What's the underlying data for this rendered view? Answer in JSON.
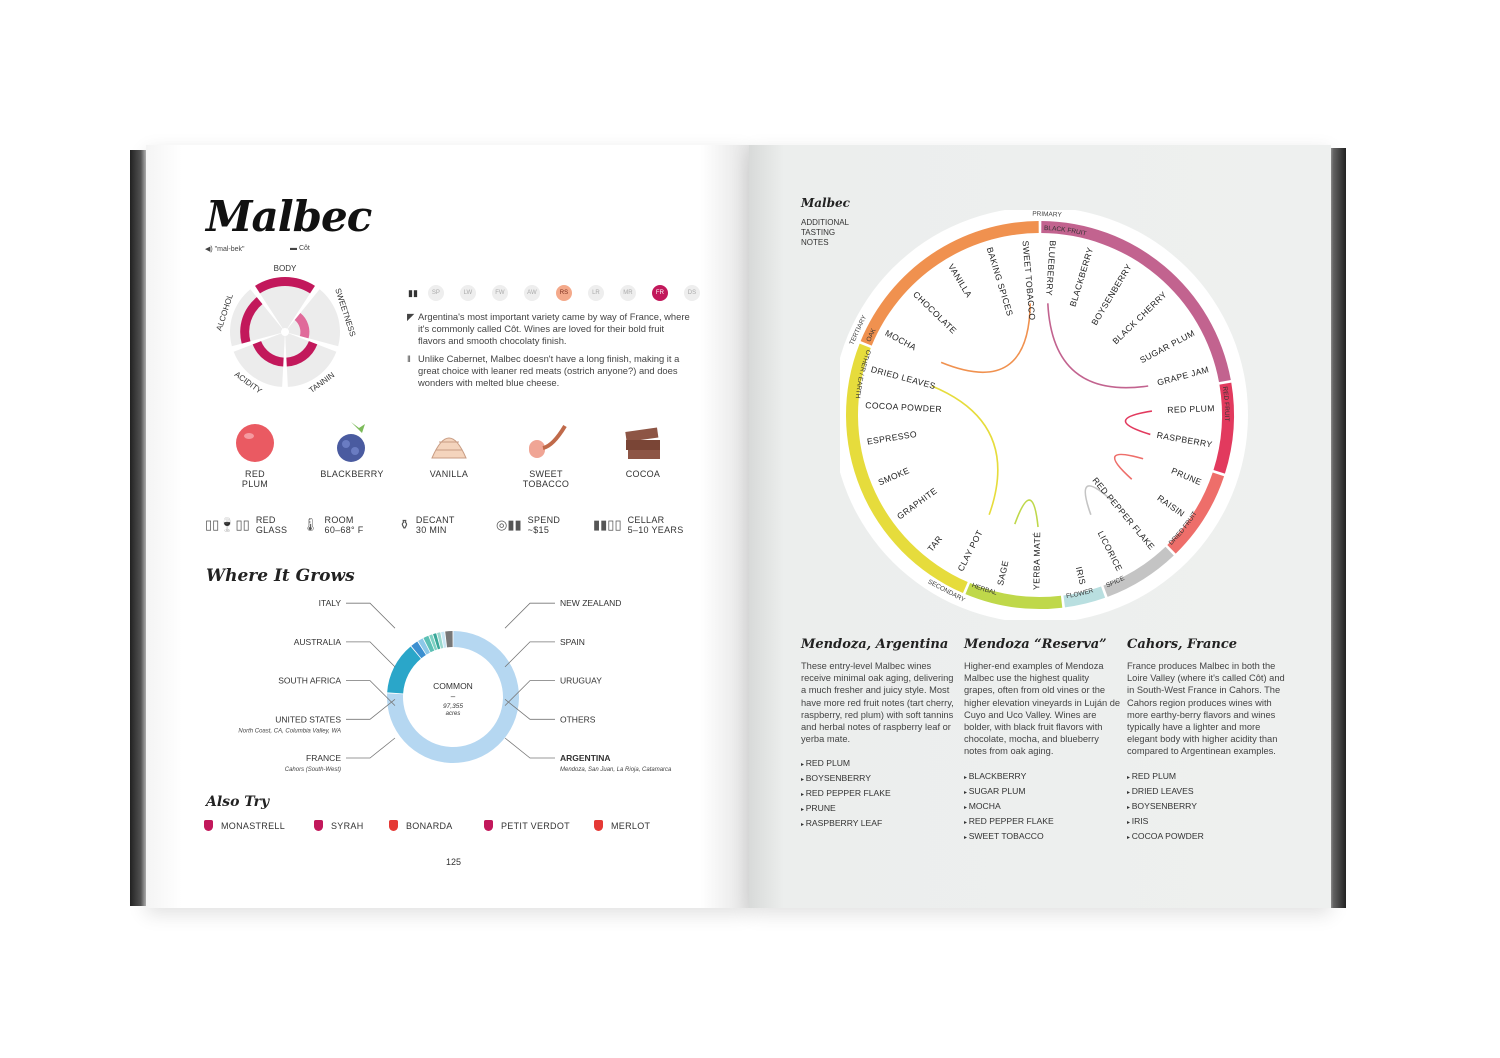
{
  "left_page": {
    "title": "Malbec",
    "pronunciation": "\"mal-bek\"",
    "synonym": "Côt",
    "profile": {
      "axes": [
        {
          "label": "BODY",
          "level": 5
        },
        {
          "label": "SWEETNESS",
          "level": 2
        },
        {
          "label": "TANNIN",
          "level": 3
        },
        {
          "label": "ACIDITY",
          "level": 3
        },
        {
          "label": "ALCOHOL",
          "level": 4
        }
      ],
      "max_level": 5
    },
    "styles": [
      {
        "code": "SP",
        "active": false
      },
      {
        "code": "LW",
        "active": false
      },
      {
        "code": "FW",
        "active": false
      },
      {
        "code": "AW",
        "active": false
      },
      {
        "code": "RS",
        "active": true,
        "color": "#f4a98a"
      },
      {
        "code": "LR",
        "active": false
      },
      {
        "code": "MR",
        "active": false
      },
      {
        "code": "FR",
        "active": true,
        "color": "#c2185b"
      },
      {
        "code": "DS",
        "active": false
      }
    ],
    "description": "Argentina's most important variety came by way of France, where it's commonly called Côt. Wines are loved for their bold fruit flavors and smooth chocolaty finish.",
    "pairing": "Unlike Cabernet, Malbec doesn't have a long finish, making it a great choice with leaner red meats (ostrich anyone?) and does wonders with melted blue cheese.",
    "flavors": [
      {
        "label": "RED\nPLUM",
        "icon": "red-plum-icon"
      },
      {
        "label": "BLACKBERRY",
        "icon": "blackberry-icon"
      },
      {
        "label": "VANILLA",
        "icon": "vanilla-icon"
      },
      {
        "label": "SWEET\nTOBACCO",
        "icon": "pipe-icon"
      },
      {
        "label": "COCOA",
        "icon": "cocoa-icon"
      }
    ],
    "serving": [
      {
        "line1": "RED",
        "line2": "GLASS",
        "icon": "wine-glass-icon"
      },
      {
        "line1": "ROOM",
        "line2": "60–68° F",
        "icon": "thermometer-icon"
      },
      {
        "line1": "DECANT",
        "line2": "30 MIN",
        "icon": "decanter-icon"
      },
      {
        "line1": "SPEND",
        "line2": "~$15",
        "icon": "coins-icon"
      },
      {
        "line1": "CELLAR",
        "line2": "5–10 YEARS",
        "icon": "bottles-icon"
      }
    ],
    "where_heading": "Where It Grows",
    "donut": {
      "center_label": "COMMON",
      "center_dash": "–",
      "center_value": "97,355",
      "center_unit": "acres",
      "segments": [
        {
          "country": "ARGENTINA",
          "share": 76,
          "color": "#b5d7f1",
          "regions": "Mendoza, San Juan, La Rioja, Catamarca"
        },
        {
          "country": "FRANCE",
          "share": 13,
          "color": "#2aa6c9",
          "regions": "Cahors (South-West)"
        },
        {
          "country": "UNITED STATES",
          "share": 2,
          "color": "#3b8fd0",
          "regions": "North Coast, CA, Columbia Valley, WA"
        },
        {
          "country": "SOUTH AFRICA",
          "share": 1.5,
          "color": "#8cc8e8",
          "regions": ""
        },
        {
          "country": "AUSTRALIA",
          "share": 1.5,
          "color": "#5cc0b5",
          "regions": ""
        },
        {
          "country": "ITALY",
          "share": 1,
          "color": "#7fd2c4",
          "regions": ""
        },
        {
          "country": "NEW ZEALAND",
          "share": 1,
          "color": "#3aa89a",
          "regions": ""
        },
        {
          "country": "SPAIN",
          "share": 1,
          "color": "#9ad8ce",
          "regions": ""
        },
        {
          "country": "URUGUAY",
          "share": 1,
          "color": "#c8e6f4",
          "regions": ""
        },
        {
          "country": "OTHERS",
          "share": 2,
          "color": "#777777",
          "regions": ""
        }
      ]
    },
    "also_try_heading": "Also Try",
    "also_try": [
      {
        "name": "MONASTRELL",
        "color": "#c2185b"
      },
      {
        "name": "SYRAH",
        "color": "#c2185b"
      },
      {
        "name": "BONARDA",
        "color": "#e53935"
      },
      {
        "name": "PETIT VERDOT",
        "color": "#c2185b"
      },
      {
        "name": "MERLOT",
        "color": "#e53935"
      }
    ],
    "page_number": "125"
  },
  "right_page": {
    "title": "Malbec",
    "subtitle": "ADDITIONAL\nTASTING\nNOTES",
    "wheel": {
      "primary_label": "PRIMARY",
      "secondary_label": "SECONDARY",
      "tertiary_label": "TERTIARY",
      "categories": [
        {
          "label": "BLACK FRUIT",
          "color": "#c2638f",
          "from": 0,
          "to": 80
        },
        {
          "label": "RED FRUIT",
          "color": "#e23a5e",
          "from": 80,
          "to": 108
        },
        {
          "label": "DRIED FRUIT",
          "color": "#ee6e6a",
          "from": 108,
          "to": 136
        },
        {
          "label": "SPICE",
          "color": "#c4c4c4",
          "from": 136,
          "to": 160
        },
        {
          "label": "FLOWER",
          "color": "#b9dfe0",
          "from": 160,
          "to": 173
        },
        {
          "label": "HERBAL",
          "color": "#bfd84a",
          "from": 173,
          "to": 203
        },
        {
          "label": "OTHER / EARTH",
          "color": "#e6dc3c",
          "from": 203,
          "to": 292
        },
        {
          "label": "OAK",
          "color": "#f0914f",
          "from": 292,
          "to": 360
        }
      ],
      "notes": [
        {
          "label": "BLUEBERRY",
          "angle": 4
        },
        {
          "label": "BLACKBERRY",
          "angle": 17
        },
        {
          "label": "BOYSENBERRY",
          "angle": 31
        },
        {
          "label": "BLACK CHERRY",
          "angle": 46
        },
        {
          "label": "SUGAR PLUM",
          "angle": 62
        },
        {
          "label": "GRAPE JAM",
          "angle": 75
        },
        {
          "label": "RED PLUM",
          "angle": 88
        },
        {
          "label": "RASPBERRY",
          "angle": 100
        },
        {
          "label": "PRUNE",
          "angle": 113
        },
        {
          "label": "RAISIN",
          "angle": 125
        },
        {
          "label": "RED PEPPER FLAKE",
          "angle": 140
        },
        {
          "label": "LICORICE",
          "angle": 153
        },
        {
          "label": "IRIS",
          "angle": 166
        },
        {
          "label": "YERBA MATÉ",
          "angle": 181
        },
        {
          "label": "SAGE",
          "angle": 193
        },
        {
          "label": "CLAY POT",
          "angle": 207
        },
        {
          "label": "TAR",
          "angle": 219
        },
        {
          "label": "GRAPHITE",
          "angle": 234
        },
        {
          "label": "SMOKE",
          "angle": 247
        },
        {
          "label": "ESPRESSO",
          "angle": 261
        },
        {
          "label": "COCOA POWDER",
          "angle": 273
        },
        {
          "label": "DRIED LEAVES",
          "angle": 285
        },
        {
          "label": "MOCHA",
          "angle": 298
        },
        {
          "label": "CHOCOLATE",
          "angle": 314
        },
        {
          "label": "VANILLA",
          "angle": 329
        },
        {
          "label": "BAKING SPICES",
          "angle": 343
        },
        {
          "label": "SWEET TOBACCO",
          "angle": 355
        }
      ],
      "links": [
        {
          "from": 355,
          "to": 298,
          "color": "#f0914f"
        },
        {
          "from": 4,
          "to": 75,
          "color": "#c2638f"
        },
        {
          "from": 88,
          "to": 100,
          "color": "#e23a5e"
        },
        {
          "from": 113,
          "to": 125,
          "color": "#ee6e6a"
        },
        {
          "from": 140,
          "to": 153,
          "color": "#c4c4c4"
        },
        {
          "from": 181,
          "to": 193,
          "color": "#bfd84a"
        },
        {
          "from": 285,
          "to": 207,
          "color": "#e6dc3c"
        }
      ]
    },
    "columns": [
      {
        "heading": "Mendoza, Argentina",
        "text": "These entry-level Malbec wines receive minimal oak aging, delivering a much fresher and juicy style. Most have more red fruit notes (tart cherry, raspberry, red plum) with soft tannins and herbal notes of raspberry leaf or yerba mate.",
        "notes": [
          "RED PLUM",
          "BOYSENBERRY",
          "RED PEPPER FLAKE",
          "PRUNE",
          "RASPBERRY LEAF"
        ]
      },
      {
        "heading": "Mendoza “Reserva”",
        "text": "Higher-end examples of Mendoza Malbec use the highest quality grapes, often from old vines or the higher elevation vineyards in Luján de Cuyo and Uco Valley.  Wines are bolder, with black fruit flavors with chocolate, mocha, and blueberry notes from oak aging.",
        "notes": [
          "BLACKBERRY",
          "SUGAR PLUM",
          "MOCHA",
          "RED PEPPER FLAKE",
          "SWEET TOBACCO"
        ]
      },
      {
        "heading": "Cahors, France",
        "text": "France produces Malbec in both the Loire Valley (where it's called Côt) and in South-West France in Cahors. The Cahors region produces wines with more earthy-berry flavors and wines typically have a lighter and more elegant body with higher acidity than compared to Argentinean examples.",
        "notes": [
          "RED PLUM",
          "DRIED LEAVES",
          "BOYSENBERRY",
          "IRIS",
          "COCOA POWDER"
        ]
      }
    ]
  }
}
